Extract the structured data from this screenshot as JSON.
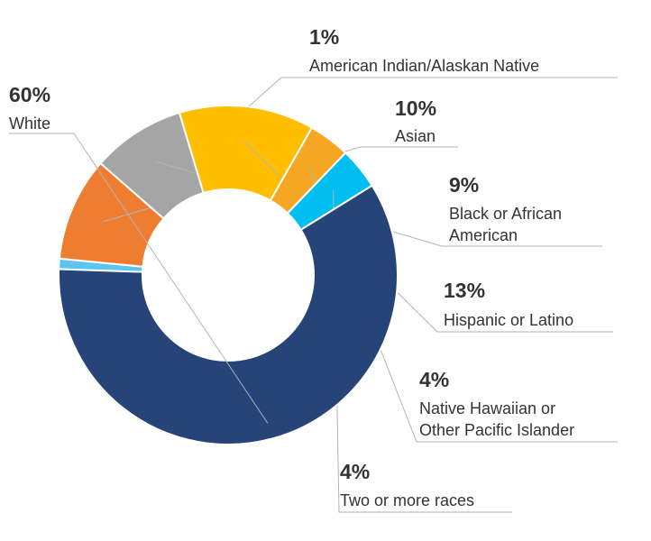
{
  "chart_data": {
    "type": "donut",
    "unit": "%",
    "slices": [
      {
        "category": "American Indian/Alaskan Native",
        "value": 1,
        "label": "1%",
        "color": "#5bc5f2"
      },
      {
        "category": "Asian",
        "value": 10,
        "label": "10%",
        "color": "#ee7d31"
      },
      {
        "category": "Black or African American",
        "category_lines": [
          "Black or African",
          "American"
        ],
        "value": 9,
        "label": "9%",
        "color": "#a5a5a5"
      },
      {
        "category": "Hispanic or Latino",
        "value": 13,
        "label": "13%",
        "color": "#ffbf00"
      },
      {
        "category": "Native Hawaiian or Other Pacific Islander",
        "category_lines": [
          "Native Hawaiian or",
          "Other Pacific Islander"
        ],
        "value": 4,
        "label": "4%",
        "color": "#f5a623"
      },
      {
        "category": "Two or more races",
        "value": 4,
        "label": "4%",
        "color": "#00bff0"
      },
      {
        "category": "White",
        "value": 60,
        "label": "60%",
        "color": "#264478"
      }
    ]
  }
}
